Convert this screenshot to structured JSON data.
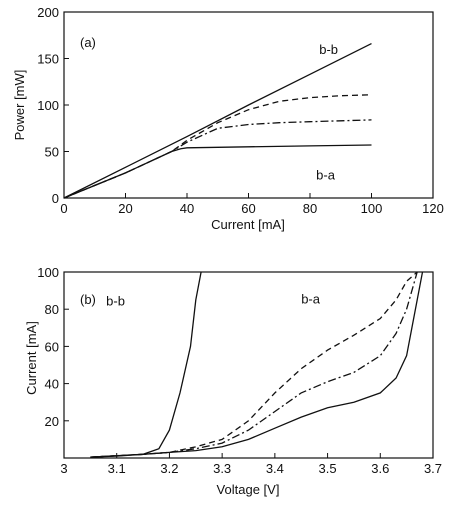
{
  "chart_data": [
    {
      "type": "line",
      "panel_label": "(a)",
      "xlabel": "Current [mA]",
      "ylabel": "Power [mW]",
      "xlim": [
        0,
        120
      ],
      "ylim": [
        0,
        200
      ],
      "xticks": [
        0,
        20,
        40,
        60,
        80,
        100,
        120
      ],
      "yticks": [
        0,
        50,
        100,
        150,
        200
      ],
      "grid": false,
      "annotations": [
        {
          "text": "b-b",
          "x": 83,
          "y": 155
        },
        {
          "text": "b-a",
          "x": 82,
          "y": 20
        }
      ],
      "series": [
        {
          "style": "solid",
          "x": [
            0,
            20,
            40,
            60,
            80,
            100
          ],
          "y": [
            0,
            33,
            66,
            100,
            133,
            166
          ]
        },
        {
          "style": "dashed",
          "x": [
            0,
            20,
            35,
            40,
            50,
            60,
            70,
            80,
            90,
            100
          ],
          "y": [
            0,
            27,
            50,
            62,
            81,
            95,
            104,
            108,
            110,
            111
          ]
        },
        {
          "style": "dashdot",
          "x": [
            0,
            20,
            35,
            40,
            50,
            60,
            70,
            80,
            90,
            100
          ],
          "y": [
            0,
            27,
            50,
            60,
            75,
            79,
            81,
            82,
            83,
            84
          ]
        },
        {
          "style": "solid",
          "x": [
            0,
            20,
            35,
            38,
            40,
            60,
            80,
            100
          ],
          "y": [
            0,
            27,
            50,
            53,
            54,
            55,
            56,
            57
          ]
        }
      ]
    },
    {
      "type": "line",
      "panel_label": "(b)",
      "xlabel": "Voltage [V]",
      "ylabel": "Current [mA]",
      "xlim": [
        3,
        3.7
      ],
      "ylim": [
        0,
        100
      ],
      "xticks": [
        3,
        3.1,
        3.2,
        3.3,
        3.4,
        3.5,
        3.6,
        3.7
      ],
      "yticks": [
        20,
        40,
        60,
        80,
        100
      ],
      "grid": false,
      "annotations": [
        {
          "text": "b-b",
          "x": 3.08,
          "y": 82
        },
        {
          "text": "b-a",
          "x": 3.45,
          "y": 83
        }
      ],
      "series": [
        {
          "style": "solid",
          "x": [
            3.05,
            3.1,
            3.15,
            3.18,
            3.2,
            3.22,
            3.24,
            3.25,
            3.26
          ],
          "y": [
            0.5,
            1,
            2,
            5,
            15,
            35,
            60,
            85,
            100
          ]
        },
        {
          "style": "dashed",
          "x": [
            3.05,
            3.15,
            3.2,
            3.25,
            3.3,
            3.35,
            3.4,
            3.45,
            3.5,
            3.55,
            3.6,
            3.63,
            3.65,
            3.67
          ],
          "y": [
            0.5,
            2,
            3,
            6,
            10,
            20,
            35,
            48,
            58,
            66,
            75,
            85,
            95,
            100
          ]
        },
        {
          "style": "dashdot",
          "x": [
            3.05,
            3.15,
            3.2,
            3.25,
            3.3,
            3.35,
            3.4,
            3.45,
            3.5,
            3.55,
            3.6,
            3.63,
            3.65,
            3.67
          ],
          "y": [
            0.5,
            2,
            3,
            5,
            8,
            15,
            25,
            35,
            41,
            46,
            55,
            67,
            80,
            100
          ]
        },
        {
          "style": "solid",
          "x": [
            3.05,
            3.15,
            3.2,
            3.25,
            3.3,
            3.35,
            3.4,
            3.45,
            3.5,
            3.55,
            3.6,
            3.63,
            3.65,
            3.66,
            3.67,
            3.68
          ],
          "y": [
            0.5,
            2,
            3,
            4,
            6,
            10,
            16,
            22,
            27,
            30,
            35,
            43,
            55,
            70,
            85,
            100
          ]
        }
      ]
    }
  ]
}
